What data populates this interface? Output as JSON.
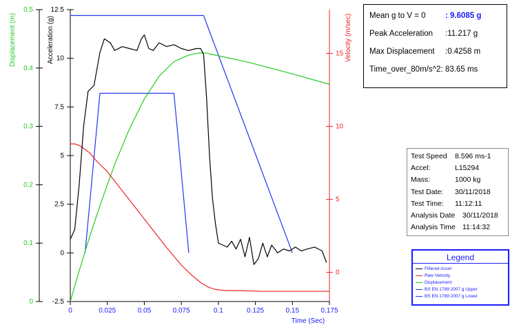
{
  "chart_data": {
    "type": "line",
    "xlabel": "Time (Sec)",
    "xlim": [
      0,
      0.175
    ],
    "x_ticks": [
      "0",
      "0.025",
      "0.05",
      "0.075",
      "0.1",
      "0.125",
      "0.15",
      "0.175"
    ],
    "axes": {
      "displacement": {
        "label": "Displacement (m)",
        "lim": [
          0,
          0.5
        ],
        "ticks": [
          "0",
          "0.1",
          "0.2",
          "0.3",
          "0.4",
          "0.5"
        ],
        "color": "#22cc22"
      },
      "acceleration": {
        "label": "Acceleration (g)",
        "lim": [
          -2.5,
          12.5
        ],
        "ticks": [
          "-2.5",
          "0",
          "2.5",
          "5",
          "7.5",
          "10",
          "12.5"
        ],
        "color": "#000000"
      },
      "velocity": {
        "label": "Velocity (m/sec)",
        "lim": [
          -2,
          18
        ],
        "ticks": [
          "0",
          "5",
          "10",
          "15"
        ],
        "color": "#ee2222"
      }
    },
    "series": [
      {
        "name": "Filtered Accel",
        "axis": "acceleration",
        "color": "#000000",
        "x": [
          0,
          0.003,
          0.006,
          0.009,
          0.012,
          0.016,
          0.02,
          0.023,
          0.027,
          0.03,
          0.035,
          0.04,
          0.045,
          0.048,
          0.05,
          0.053,
          0.056,
          0.06,
          0.065,
          0.07,
          0.075,
          0.08,
          0.085,
          0.088,
          0.09,
          0.092,
          0.094,
          0.096,
          0.098,
          0.1,
          0.103,
          0.106,
          0.109,
          0.112,
          0.115,
          0.118,
          0.121,
          0.124,
          0.127,
          0.13,
          0.133,
          0.136,
          0.14,
          0.144,
          0.148,
          0.152,
          0.156,
          0.16,
          0.165,
          0.17,
          0.173
        ],
        "y": [
          0.7,
          1.2,
          3.5,
          6.5,
          8.3,
          8.6,
          10.3,
          11.0,
          10.8,
          10.4,
          10.6,
          10.5,
          10.4,
          11.0,
          11.2,
          10.5,
          10.4,
          10.8,
          10.6,
          10.7,
          10.5,
          10.4,
          10.5,
          10.5,
          10.2,
          8.0,
          5.0,
          2.8,
          1.5,
          0.5,
          0.4,
          0.3,
          0.6,
          0.2,
          0.7,
          -0.2,
          0.8,
          -0.6,
          -0.3,
          0.5,
          -0.2,
          0.4,
          0.0,
          0.2,
          0.1,
          0.3,
          0.1,
          0.2,
          0.3,
          0.1,
          -0.5
        ]
      },
      {
        "name": "Raw Velocity",
        "axis": "velocity",
        "color": "#ee2222",
        "x": [
          0,
          0.003,
          0.006,
          0.009,
          0.013,
          0.018,
          0.025,
          0.035,
          0.045,
          0.055,
          0.065,
          0.075,
          0.082,
          0.088,
          0.093,
          0.097,
          0.1,
          0.105,
          0.115,
          0.13,
          0.15,
          0.175
        ],
        "y": [
          8.8,
          8.8,
          8.7,
          8.5,
          8.2,
          7.6,
          6.9,
          5.6,
          4.3,
          3.0,
          1.7,
          0.5,
          -0.2,
          -0.7,
          -1.0,
          -1.15,
          -1.2,
          -1.25,
          -1.25,
          -1.3,
          -1.3,
          -1.3
        ]
      },
      {
        "name": "Displacement",
        "axis": "displacement",
        "color": "#22cc22",
        "x": [
          0,
          0.005,
          0.01,
          0.015,
          0.02,
          0.025,
          0.03,
          0.04,
          0.05,
          0.06,
          0.07,
          0.08,
          0.087,
          0.092,
          0.1,
          0.12,
          0.15,
          0.175
        ],
        "y": [
          0,
          0.044,
          0.086,
          0.126,
          0.164,
          0.2,
          0.235,
          0.296,
          0.347,
          0.386,
          0.411,
          0.422,
          0.4258,
          0.4255,
          0.421,
          0.41,
          0.39,
          0.372
        ]
      },
      {
        "name": "BS EN 1789:2007 g Upper",
        "axis": "acceleration",
        "color": "#2233ee",
        "x": [
          0,
          0.09,
          0.15
        ],
        "y": [
          12.2,
          12.2,
          0
        ]
      },
      {
        "name": "BS EN 1789:2007 g Lower",
        "axis": "acceleration",
        "color": "#2233ee",
        "x": [
          0.01,
          0.02,
          0.07,
          0.08
        ],
        "y": [
          0,
          8.2,
          8.2,
          0
        ]
      }
    ]
  },
  "summary": [
    {
      "label": "Mean g to V = 0",
      "value": ": 9.6085 g",
      "highlight": true
    },
    {
      "label": "Peak Acceleration",
      "value": ":11.217 g",
      "highlight": false
    },
    {
      "label": "Max Displacement",
      "value": ":0.4258 m",
      "highlight": false
    },
    {
      "label": "Time_over_80m/s^2:",
      "value": "83.65 ms",
      "highlight": false
    }
  ],
  "info": [
    {
      "label": "Test Speed",
      "value": "8.596 ms-1"
    },
    {
      "label": "Accel:",
      "value": "L15294"
    },
    {
      "label": "Mass:",
      "value": "1000 kg"
    },
    {
      "label": "Test Date:",
      "value": "30/11/2018"
    },
    {
      "label": "Test Time:",
      "value": "11:12:11"
    },
    {
      "label": "Analysis Date",
      "value": "30/11/2018"
    },
    {
      "label": "Analysis Time",
      "value": "11:14:32"
    }
  ],
  "legend": {
    "title": "Legend",
    "items": [
      {
        "label": "Filtered Accel",
        "color": "#000000"
      },
      {
        "label": "Raw Velocity",
        "color": "#ee2222"
      },
      {
        "label": "Displacement",
        "color": "#22cc22"
      },
      {
        "label": "BS EN 1789:2007 g Upper",
        "color": "#2233ee"
      },
      {
        "label": "BS EN 1789:2007 g Lower",
        "color": "#2233ee"
      }
    ]
  }
}
